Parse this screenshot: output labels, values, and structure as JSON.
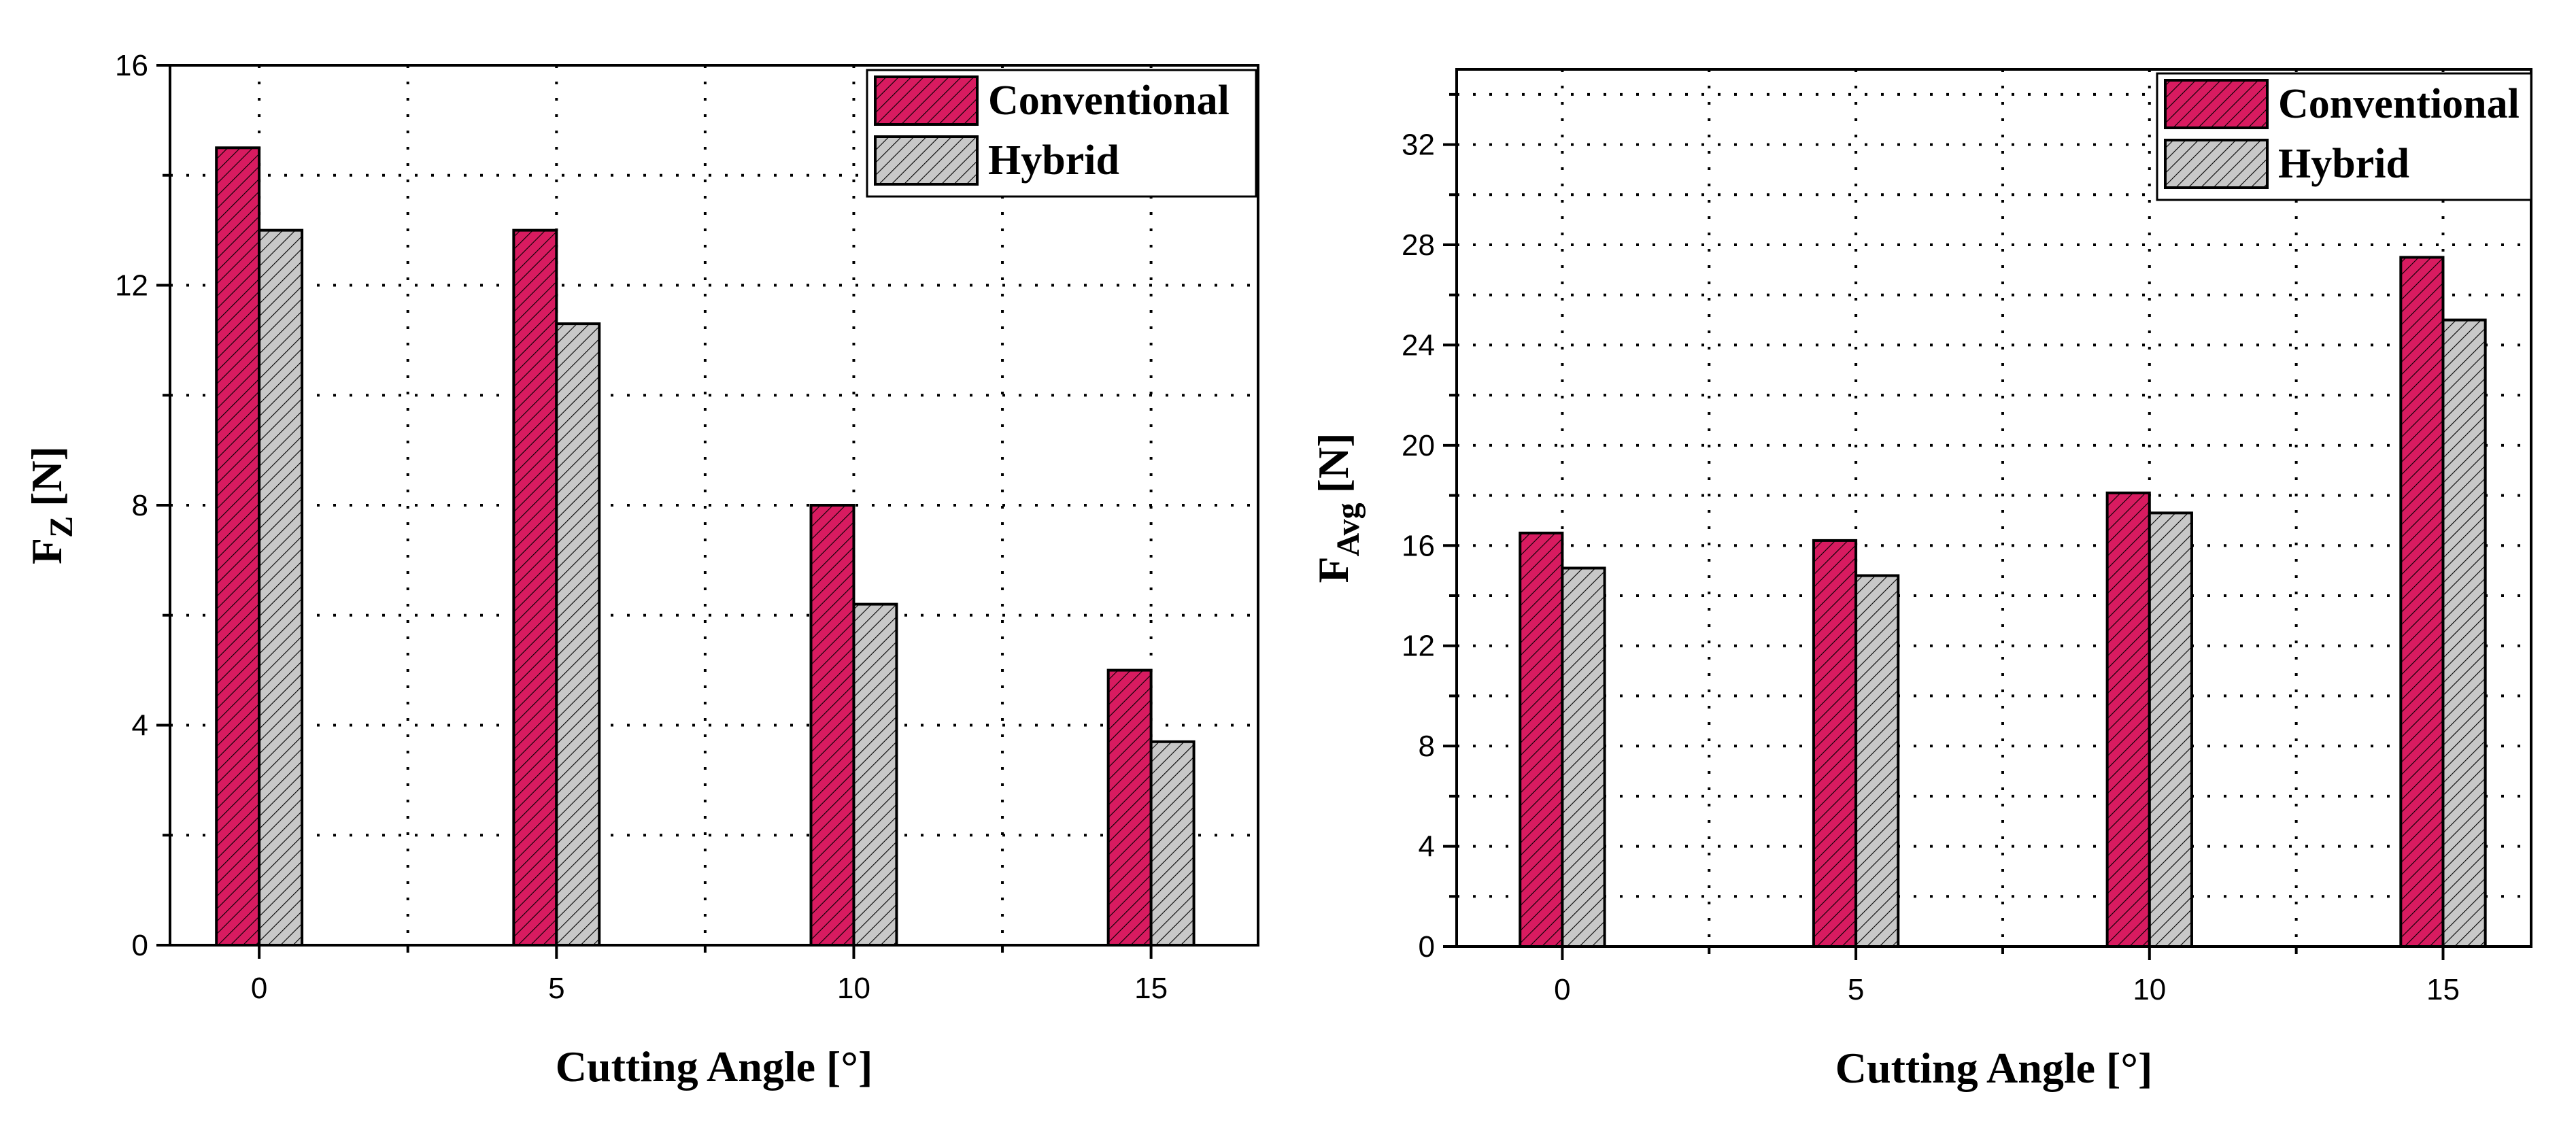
{
  "colors": {
    "conventional": "#d81b60",
    "hybrid": "#c8c8c8",
    "hatch": "#000000",
    "grid": "#000000",
    "axis": "#000000"
  },
  "chart_data": [
    {
      "type": "bar",
      "id": "left",
      "categories": [
        "0",
        "5",
        "10",
        "15"
      ],
      "series": [
        {
          "name": "Conventional",
          "values": [
            14.5,
            13.0,
            8.0,
            5.0
          ]
        },
        {
          "name": "Hybrid",
          "values": [
            13.0,
            11.3,
            6.2,
            3.7
          ]
        }
      ],
      "xlabel": "Cutting Angle [°]",
      "ylabel_main": "F",
      "ylabel_sub": "Z",
      "ylabel_unit": "[N]",
      "ylim": [
        0,
        16
      ],
      "yticks": [
        0,
        4,
        8,
        12,
        16
      ],
      "yminor_step": 2,
      "grid": true,
      "legend_position": "top-right"
    },
    {
      "type": "bar",
      "id": "right",
      "categories": [
        "0",
        "5",
        "10",
        "15"
      ],
      "series": [
        {
          "name": "Conventional",
          "values": [
            16.5,
            16.2,
            18.1,
            27.5
          ]
        },
        {
          "name": "Hybrid",
          "values": [
            15.1,
            14.8,
            17.3,
            25.0
          ]
        }
      ],
      "xlabel": "Cutting Angle [°]",
      "ylabel_main": "F",
      "ylabel_sub": "Avg",
      "ylabel_unit": "[N]",
      "ylim": [
        0,
        35
      ],
      "yticks": [
        0,
        4,
        8,
        12,
        16,
        20,
        24,
        28,
        32
      ],
      "yminor_step": 2,
      "grid": true,
      "legend_position": "top-right"
    }
  ]
}
